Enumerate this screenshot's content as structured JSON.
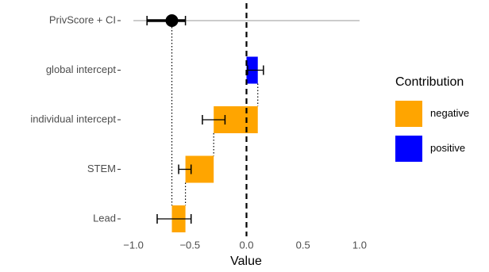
{
  "chart_data": {
    "type": "waterfall",
    "x_label": "Value",
    "categories": [
      "PrivScore + CI",
      "global intercept",
      "individual intercept",
      "STEM",
      "Lead"
    ],
    "values": [
      -0.66,
      0.1,
      -0.39,
      -0.25,
      -0.12
    ],
    "err_low": [
      -0.88,
      0.01,
      -0.39,
      -0.6,
      -0.79
    ],
    "err_high": [
      -0.54,
      0.15,
      -0.19,
      -0.49,
      -0.49
    ],
    "xlim": [
      -1.12,
      1.12
    ],
    "xticks": [
      {
        "value": -1,
        "label": "−1.0"
      },
      {
        "value": -0.5,
        "label": "−0.5"
      },
      {
        "value": 0,
        "label": "0.0"
      },
      {
        "value": 0.5,
        "label": "0.5"
      },
      {
        "value": 1,
        "label": "1.0"
      }
    ],
    "ref_line": 0,
    "legend": {
      "title": "Contribution",
      "entries": [
        {
          "name": "negative",
          "color": "#ffa500"
        },
        {
          "name": "positive",
          "color": "#0000ff"
        }
      ]
    }
  }
}
